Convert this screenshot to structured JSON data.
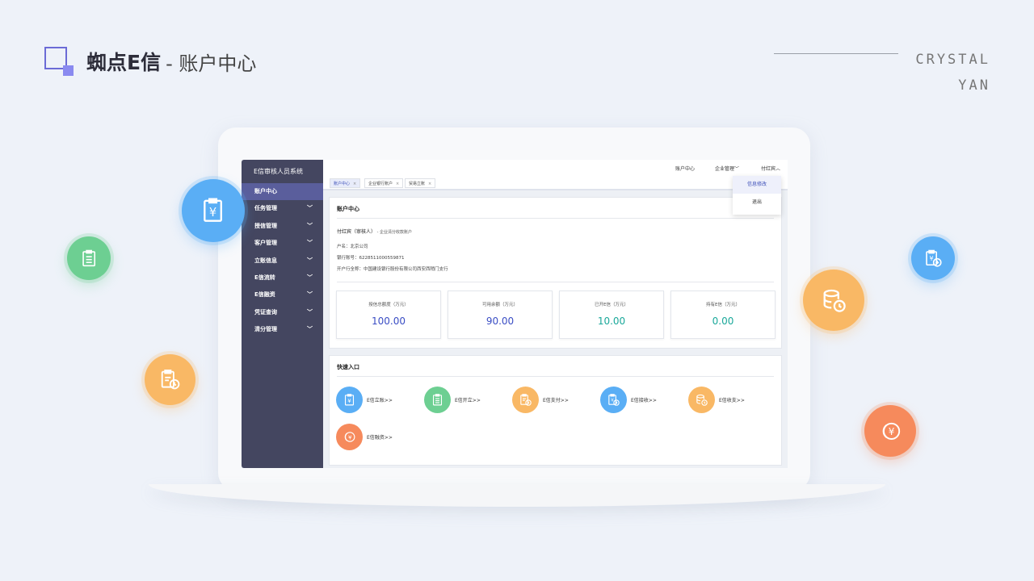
{
  "header": {
    "title_main": "蜘点E信",
    "title_sub": "- 账户中心",
    "brand_line1": "CRYSTAL",
    "brand_line2": "YAN"
  },
  "app": {
    "system_title": "E信审核人员系统",
    "menu": [
      {
        "label": "账户中心",
        "active": true,
        "has_chevron": false
      },
      {
        "label": "任务管理",
        "has_chevron": true
      },
      {
        "label": "授信管理",
        "has_chevron": true
      },
      {
        "label": "客户管理",
        "has_chevron": true
      },
      {
        "label": "立账信息",
        "has_chevron": true
      },
      {
        "label": "E信流转",
        "has_chevron": true
      },
      {
        "label": "E信融资",
        "has_chevron": true
      },
      {
        "label": "凭证查询",
        "has_chevron": true
      },
      {
        "label": "清分管理",
        "has_chevron": true
      }
    ],
    "topnav": {
      "account_center": "账户中心",
      "enterprise_mgmt": "企业管理",
      "user": "付红宾",
      "caret_down": "﹀",
      "caret_up": "︿"
    },
    "tabs": [
      {
        "label": "账户中心",
        "active": true
      },
      {
        "label": "企业银行账户"
      },
      {
        "label": "贸易立账"
      }
    ],
    "tab_close": "×",
    "dropdown": {
      "edit": "信息修改",
      "logout": "退出"
    },
    "account_card": {
      "title": "账户中心",
      "user_name": "付红宾（审核人）",
      "user_type": " - 企业清分收款账户",
      "account_name": "户名：北京公司",
      "account_no": "银行账号：6228511000559871",
      "bank": "开户行全称：中国建设银行股份有限公司西安西稍门支行"
    },
    "stats": [
      {
        "label": "授信总额度（万元）",
        "value": "100.00",
        "color": "#3a4dc4"
      },
      {
        "label": "可用余额（万元）",
        "value": "90.00",
        "color": "#3a4dc4"
      },
      {
        "label": "已开E信（万元）",
        "value": "10.00",
        "color": "#1aa89a"
      },
      {
        "label": "持有E信（万元）",
        "value": "0.00",
        "color": "#1aa89a"
      }
    ],
    "quick": {
      "title": "快速入口",
      "items": [
        {
          "label": "E信立账>>",
          "color": "#5aaef5",
          "icon": "yen-clipboard-icon"
        },
        {
          "label": "E信开立>>",
          "color": "#6dcf92",
          "icon": "document-icon"
        },
        {
          "label": "E信支付>>",
          "color": "#f9b865",
          "icon": "document-clock-icon"
        },
        {
          "label": "E信接收>>",
          "color": "#5aaef5",
          "icon": "yen-download-icon"
        },
        {
          "label": "E信收支>>",
          "color": "#f9b865",
          "icon": "database-clock-icon"
        },
        {
          "label": "E信融资>>",
          "color": "#f68a5c",
          "icon": "coin-yen-icon"
        }
      ]
    }
  },
  "floating_icons": [
    {
      "name": "yen-clipboard-icon",
      "color": "#5aaef5"
    },
    {
      "name": "document-icon",
      "color": "#6dcf92"
    },
    {
      "name": "document-clock-icon",
      "color": "#f9b865"
    },
    {
      "name": "database-clock-icon",
      "color": "#f9b865"
    },
    {
      "name": "yen-download-icon",
      "color": "#5aaef5"
    },
    {
      "name": "coin-yen-icon",
      "color": "#f68a5c"
    }
  ],
  "icon_glyphs": {
    "yen": "¥"
  }
}
